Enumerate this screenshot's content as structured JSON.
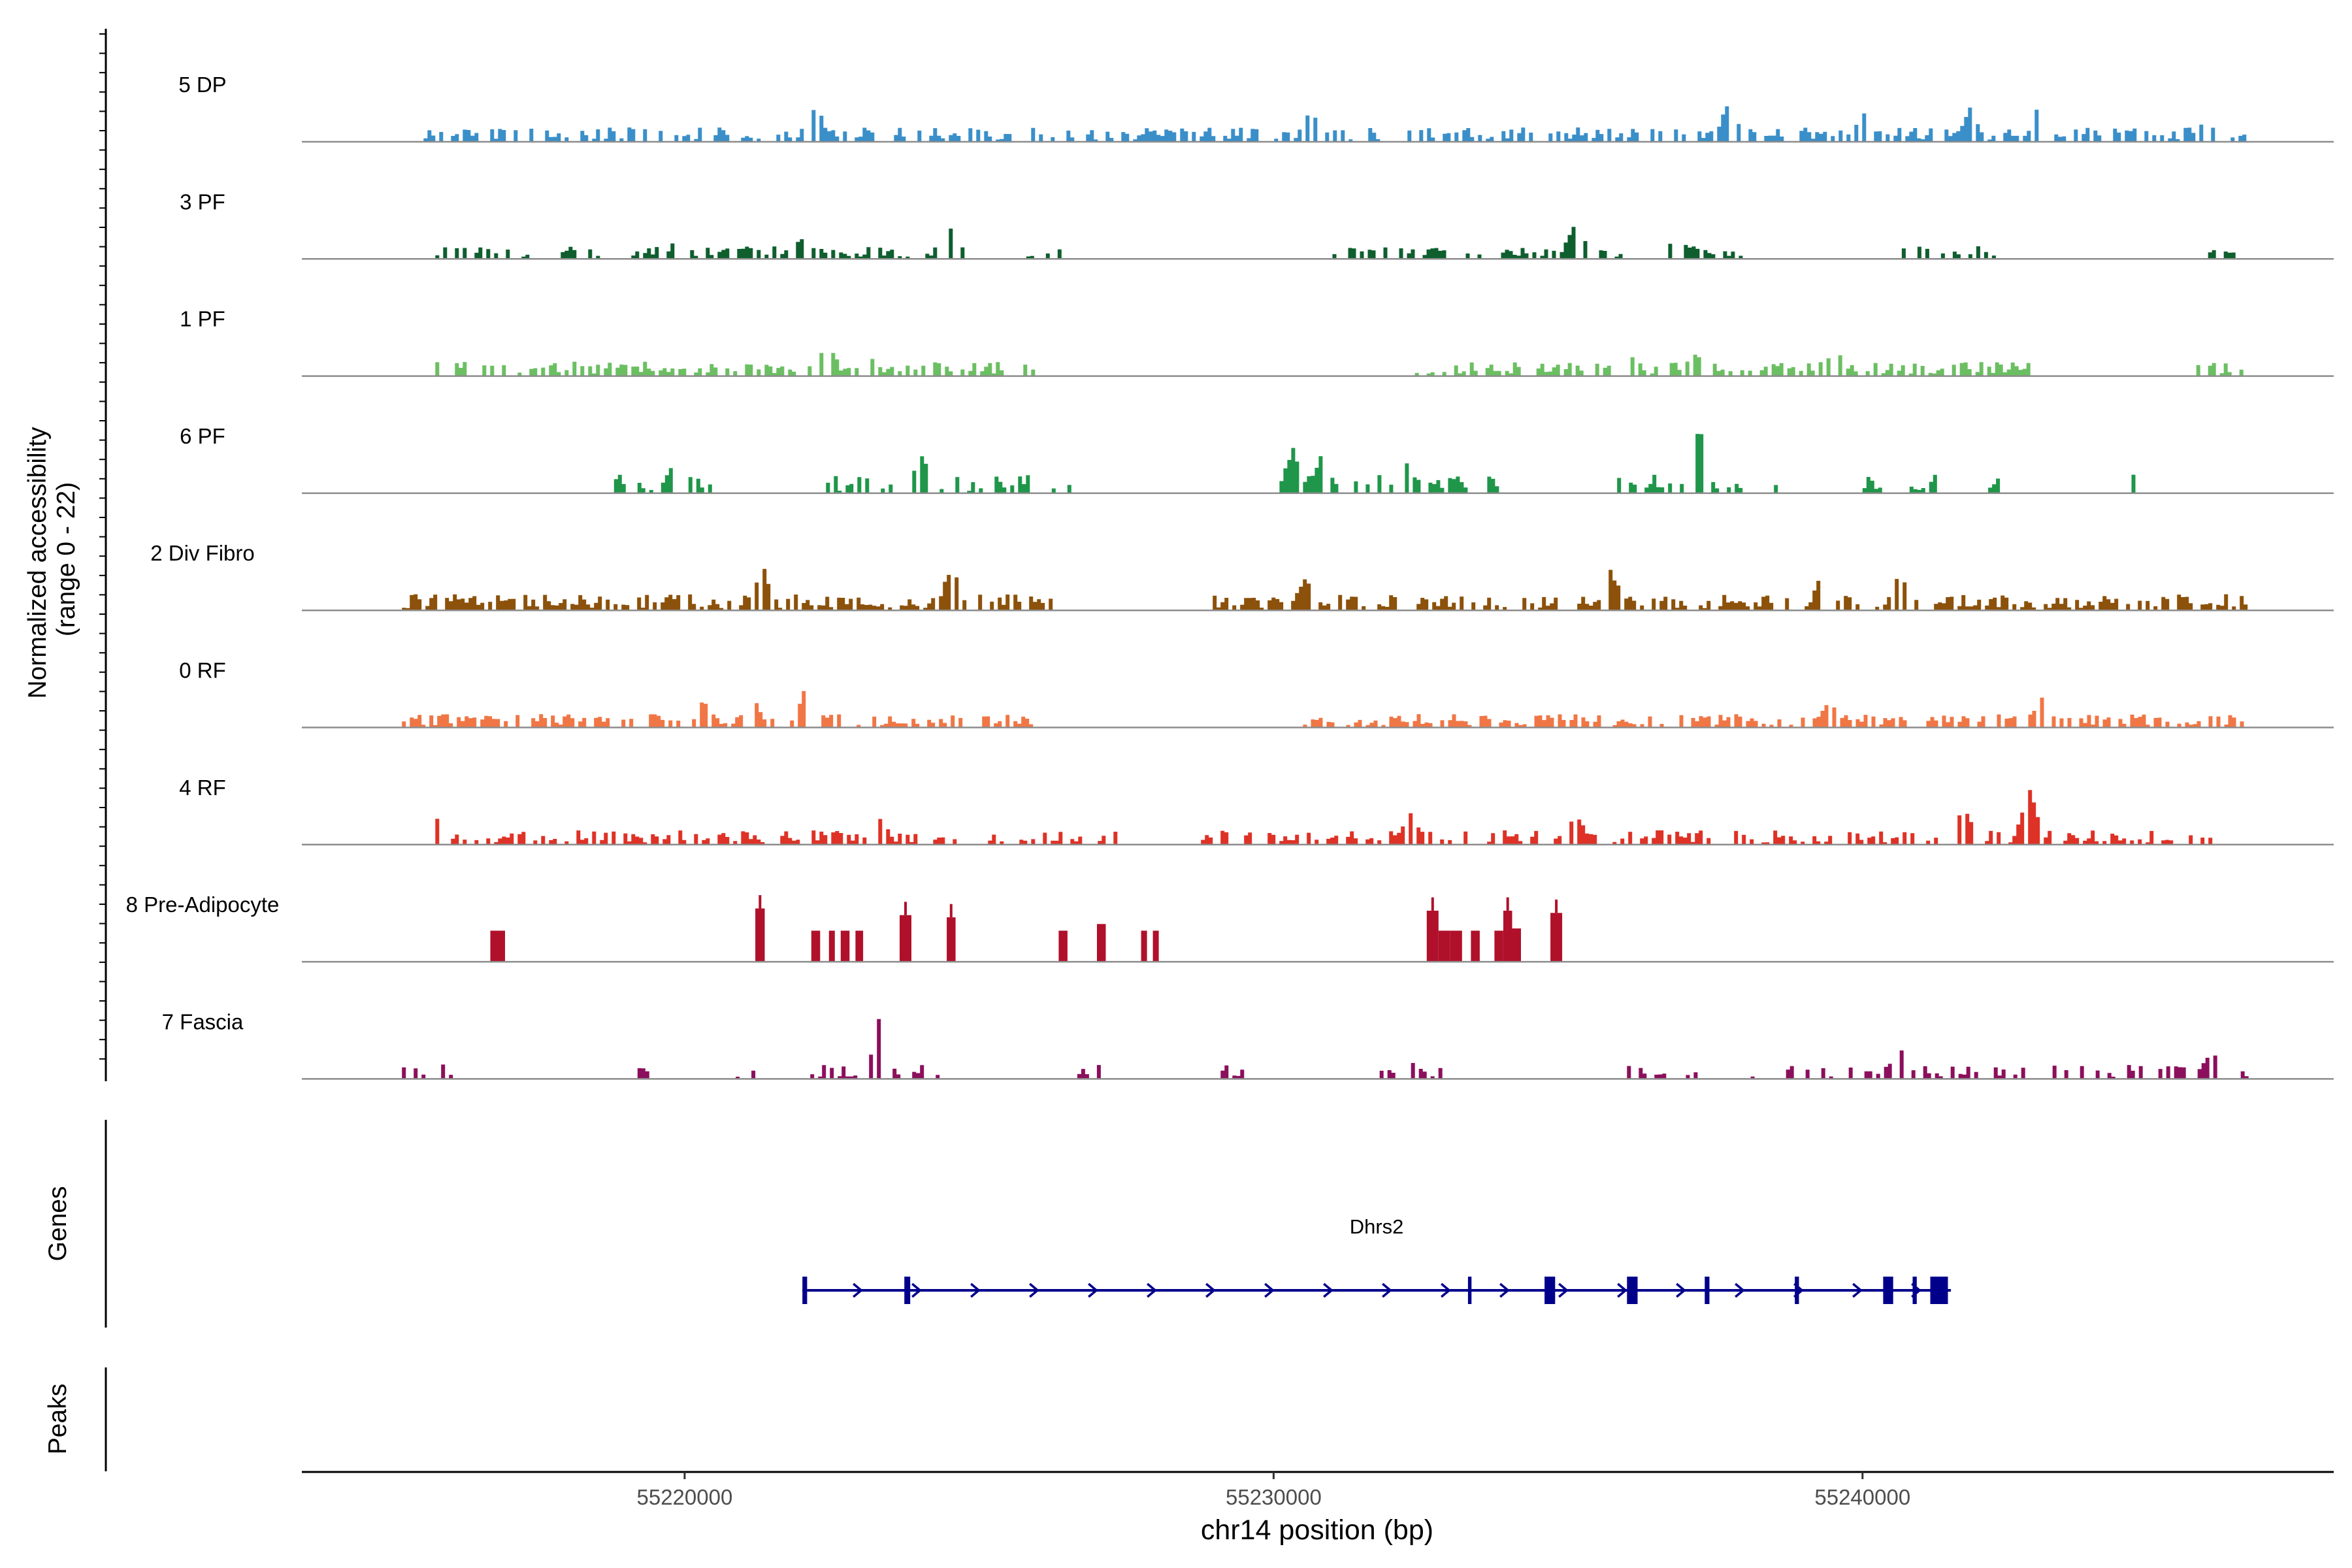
{
  "chart_data": {
    "type": "coverage-track",
    "y_axis_label_line1": "Normalized accessibility",
    "y_axis_label_line2": "(range 0 - 22)",
    "ylim": [
      0,
      22
    ],
    "xlabel": "chr14 position (bp)",
    "xlim": [
      55213500,
      55248000
    ],
    "x_ticks": [
      55220000,
      55230000,
      55240000
    ],
    "x_tick_labels": [
      "55220000",
      "55230000",
      "55240000"
    ],
    "genes_panel_label": "Genes",
    "peaks_panel_label": "Peaks",
    "tracks": [
      {
        "name": "5 DP",
        "color": "#3A8FC9",
        "seed": 11,
        "density": 0.55,
        "amp": 0.22,
        "regions": [
          [
            55215500,
            55246500
          ]
        ],
        "peaks": [
          [
            55222200,
            0.5
          ],
          [
            55225700,
            0.45
          ],
          [
            55230600,
            0.42
          ],
          [
            55237700,
            0.55
          ],
          [
            55240000,
            0.4
          ],
          [
            55241800,
            0.45
          ],
          [
            55243000,
            0.6
          ],
          [
            55245800,
            0.35
          ]
        ]
      },
      {
        "name": "3 PF",
        "color": "#0E5E2E",
        "seed": 23,
        "density": 0.45,
        "amp": 0.2,
        "regions": [
          [
            55215300,
            55224900
          ],
          [
            55225800,
            55226400
          ],
          [
            55230600,
            55236000
          ],
          [
            55236700,
            55238100
          ],
          [
            55240600,
            55242200
          ],
          [
            55245800,
            55246500
          ]
        ],
        "peaks": [
          [
            55219900,
            0.35
          ],
          [
            55222000,
            0.35
          ],
          [
            55224500,
            0.45
          ],
          [
            55235100,
            0.5
          ],
          [
            55236800,
            0.35
          ]
        ]
      },
      {
        "name": "1 PF",
        "color": "#6BBF62",
        "seed": 37,
        "density": 0.55,
        "amp": 0.22,
        "regions": [
          [
            55215500,
            55225900
          ],
          [
            55232400,
            55242800
          ],
          [
            55245600,
            55246500
          ]
        ],
        "peaks": [
          [
            55222400,
            0.5
          ],
          [
            55223100,
            0.3
          ],
          [
            55235900,
            0.6
          ],
          [
            55237100,
            0.35
          ],
          [
            55239500,
            0.45
          ]
        ]
      },
      {
        "name": "6 PF",
        "color": "#1F9649",
        "seed": 53,
        "density": 0.45,
        "amp": 0.3,
        "regions": [
          [
            55218800,
            55220400
          ],
          [
            55222400,
            55225800
          ],
          [
            55226100,
            55226600
          ],
          [
            55230100,
            55233900
          ],
          [
            55235700,
            55238500
          ],
          [
            55239800,
            55241200
          ],
          [
            55242000,
            55242300
          ],
          [
            55244300,
            55244600
          ]
        ],
        "peaks": [
          [
            55219800,
            0.45
          ],
          [
            55224000,
            0.55
          ],
          [
            55230300,
            0.6
          ],
          [
            55230800,
            0.55
          ],
          [
            55232200,
            0.45
          ],
          [
            55237200,
            0.95
          ],
          [
            55226000,
            0.45
          ]
        ]
      },
      {
        "name": "2 Div Fibro",
        "color": "#8C510A",
        "seed": 71,
        "density": 0.65,
        "amp": 0.25,
        "regions": [
          [
            55215200,
            55226200
          ],
          [
            55228900,
            55246500
          ]
        ],
        "peaks": [
          [
            55221300,
            0.6
          ],
          [
            55224500,
            0.65
          ],
          [
            55230500,
            0.45
          ],
          [
            55235700,
            0.55
          ],
          [
            55239300,
            0.55
          ],
          [
            55240600,
            0.5
          ]
        ]
      },
      {
        "name": "0 RF",
        "color": "#F07645",
        "seed": 89,
        "density": 0.6,
        "amp": 0.2,
        "regions": [
          [
            55215200,
            55225900
          ],
          [
            55230500,
            55246500
          ]
        ],
        "peaks": [
          [
            55221100,
            0.55
          ],
          [
            55222000,
            0.5
          ],
          [
            55220300,
            0.35
          ],
          [
            55243000,
            0.45
          ],
          [
            55239400,
            0.35
          ]
        ]
      },
      {
        "name": "4 RF",
        "color": "#DE3226",
        "seed": 97,
        "density": 0.55,
        "amp": 0.22,
        "regions": [
          [
            55215500,
            55227300
          ],
          [
            55228700,
            55246000
          ]
        ],
        "peaks": [
          [
            55215800,
            0.4
          ],
          [
            55223300,
            0.35
          ],
          [
            55232300,
            0.45
          ],
          [
            55235100,
            0.4
          ],
          [
            55241700,
            0.55
          ],
          [
            55242800,
            0.85
          ]
        ]
      },
      {
        "name": "8 Pre-Adipocyte",
        "color": "#B0102A",
        "seed": 0,
        "density": 0,
        "amp": 0,
        "blocks": [
          [
            55216700,
            55216950,
            0.7
          ],
          [
            55221200,
            55221360,
            1.2
          ],
          [
            55222150,
            55222300,
            0.7
          ],
          [
            55222450,
            55222550,
            0.7
          ],
          [
            55222650,
            55222800,
            0.7
          ],
          [
            55222900,
            55223030,
            0.7
          ],
          [
            55223650,
            55223850,
            1.05
          ],
          [
            55224450,
            55224600,
            1.0
          ],
          [
            55226350,
            55226500,
            0.7
          ],
          [
            55227000,
            55227150,
            0.85
          ],
          [
            55227750,
            55227850,
            0.7
          ],
          [
            55227950,
            55228050,
            0.7
          ],
          [
            55232600,
            55232800,
            1.15
          ],
          [
            55232800,
            55233000,
            0.7
          ],
          [
            55233000,
            55233200,
            0.7
          ],
          [
            55233350,
            55233500,
            0.7
          ],
          [
            55233750,
            55233900,
            0.7
          ],
          [
            55233900,
            55234050,
            1.15
          ],
          [
            55234050,
            55234200,
            0.75
          ],
          [
            55234700,
            55234900,
            1.1
          ]
        ]
      },
      {
        "name": "7 Fascia",
        "color": "#8B0F5C",
        "seed": 131,
        "density": 0.45,
        "amp": 0.22,
        "regions": [
          [
            55215200,
            55216100
          ],
          [
            55219200,
            55219400
          ],
          [
            55220800,
            55221300
          ],
          [
            55222000,
            55224300
          ],
          [
            55226600,
            55227100
          ],
          [
            55229100,
            55229500
          ],
          [
            55231800,
            55232800
          ],
          [
            55234400,
            55234600
          ],
          [
            55236000,
            55236700
          ],
          [
            55237000,
            55237300
          ],
          [
            55238100,
            55238400
          ],
          [
            55238700,
            55246500
          ]
        ],
        "peaks": [
          [
            55223300,
            0.95
          ],
          [
            55232200,
            0.35
          ],
          [
            55240600,
            0.45
          ],
          [
            55242900,
            0.75
          ],
          [
            55245900,
            0.4
          ]
        ]
      }
    ],
    "genes": [
      {
        "name": "Dhrs2",
        "color": "#00008B",
        "strand": "+",
        "start": 55222000,
        "end": 55241500,
        "exons": [
          [
            55222000,
            55222080
          ],
          [
            55223730,
            55223830
          ],
          [
            55233300,
            55233360
          ],
          [
            55234600,
            55234780
          ],
          [
            55236000,
            55236180
          ],
          [
            55237320,
            55237400
          ],
          [
            55238850,
            55238920
          ],
          [
            55240350,
            55240520
          ],
          [
            55240850,
            55240920
          ],
          [
            55241150,
            55241450
          ]
        ]
      }
    ]
  }
}
